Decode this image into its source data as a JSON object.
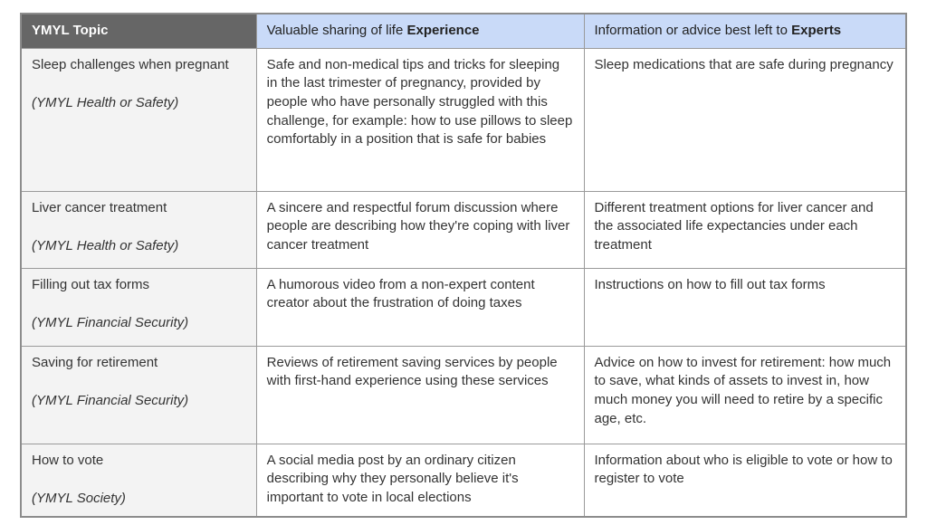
{
  "colors": {
    "header_topic_bg": "#666666",
    "header_topic_text": "#ffffff",
    "header_blue_bg": "#c9daf8",
    "body_text": "#333333",
    "topic_column_bg": "#f3f3f3",
    "border": "#9a9a9a"
  },
  "table": {
    "headers": [
      {
        "prefix": "",
        "bold": "YMYL Topic"
      },
      {
        "prefix": "Valuable sharing of life ",
        "bold": "Experience"
      },
      {
        "prefix": "Information or advice best left to ",
        "bold": "Experts"
      }
    ],
    "rows": [
      {
        "topic": "Sleep challenges when pregnant",
        "category": "(YMYL Health or Safety)",
        "experience": "Safe and non-medical tips and tricks for sleeping in the last trimester of pregnancy, provided by people who have personally struggled with this challenge, for example: how to use pillows to sleep comfortably in a position that is safe for babies",
        "experts": "Sleep medications that are safe during pregnancy"
      },
      {
        "topic": "Liver cancer treatment",
        "category": "(YMYL Health or Safety)",
        "experience": "A sincere and respectful forum discussion where people are describing how they're coping with liver cancer treatment",
        "experts": "Different treatment options for liver cancer and the associated life expectancies under each treatment"
      },
      {
        "topic": "Filling out tax forms",
        "category": "(YMYL Financial Security)",
        "experience": "A humorous video from a non-expert content creator about the frustration of doing taxes",
        "experts": "Instructions on how to fill out tax forms"
      },
      {
        "topic": "Saving for retirement",
        "category": "(YMYL Financial Security)",
        "experience": "Reviews of retirement saving services by people with first-hand experience using these services",
        "experts": "Advice on how to invest for retirement: how much to save, what kinds of assets to invest in, how much money you will need to retire by a specific age, etc."
      },
      {
        "topic": "How to vote",
        "category": "(YMYL Society)",
        "experience": "A social media post by an ordinary citizen describing why they personally believe it's important to vote in local elections",
        "experts": "Information about who is eligible to vote or how to register to vote"
      }
    ]
  }
}
